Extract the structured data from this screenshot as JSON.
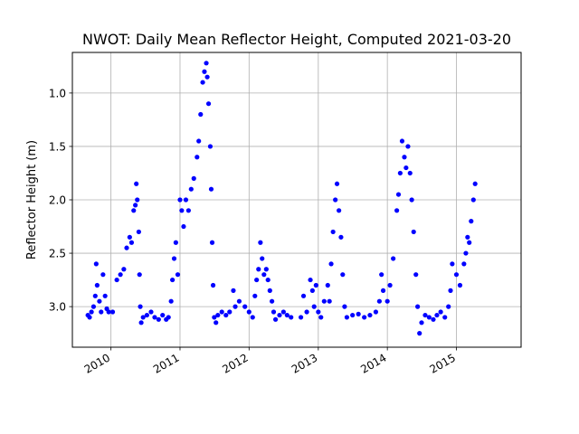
{
  "chart_data": {
    "type": "scatter",
    "title": "NWOT: Daily Mean Reflector Height, Computed 2021-03-20",
    "xlabel": "",
    "ylabel": "Reflector Height (m)",
    "x_axis_type": "date",
    "xlim": [
      "2009-06-11",
      "2015-12-09"
    ],
    "ylim": [
      3.38,
      0.62
    ],
    "y_inverted": true,
    "grid": true,
    "marker_color": "#0000ff",
    "xticks": [
      {
        "label": "2010",
        "date": "2010-01-01"
      },
      {
        "label": "2011",
        "date": "2011-01-01"
      },
      {
        "label": "2012",
        "date": "2012-01-01"
      },
      {
        "label": "2013",
        "date": "2013-01-01"
      },
      {
        "label": "2014",
        "date": "2014-01-01"
      },
      {
        "label": "2015",
        "date": "2015-01-01"
      }
    ],
    "yticks": [
      {
        "label": "1.0",
        "value": 1.0
      },
      {
        "label": "1.5",
        "value": 1.5
      },
      {
        "label": "2.0",
        "value": 2.0
      },
      {
        "label": "2.5",
        "value": 2.5
      },
      {
        "label": "3.0",
        "value": 3.0
      }
    ],
    "series": [
      {
        "points": [
          [
            "2009-09-01",
            3.08
          ],
          [
            "2009-09-10",
            3.1
          ],
          [
            "2009-09-20",
            3.05
          ],
          [
            "2009-10-01",
            3.0
          ],
          [
            "2009-10-10",
            2.9
          ],
          [
            "2009-10-15",
            2.6
          ],
          [
            "2009-10-20",
            2.8
          ],
          [
            "2009-11-01",
            2.95
          ],
          [
            "2009-11-10",
            3.05
          ],
          [
            "2009-11-20",
            2.7
          ],
          [
            "2009-12-01",
            2.9
          ],
          [
            "2009-12-10",
            3.02
          ],
          [
            "2009-12-20",
            3.05
          ],
          [
            "2010-01-10",
            3.05
          ],
          [
            "2010-02-01",
            2.75
          ],
          [
            "2010-02-20",
            2.7
          ],
          [
            "2010-03-10",
            2.65
          ],
          [
            "2010-03-25",
            2.45
          ],
          [
            "2010-04-10",
            2.35
          ],
          [
            "2010-04-20",
            2.4
          ],
          [
            "2010-05-01",
            2.1
          ],
          [
            "2010-05-10",
            2.05
          ],
          [
            "2010-05-15",
            1.85
          ],
          [
            "2010-05-20",
            2.0
          ],
          [
            "2010-05-28",
            2.3
          ],
          [
            "2010-06-01",
            2.7
          ],
          [
            "2010-06-05",
            3.0
          ],
          [
            "2010-06-10",
            3.15
          ],
          [
            "2010-06-20",
            3.1
          ],
          [
            "2010-07-10",
            3.08
          ],
          [
            "2010-08-01",
            3.05
          ],
          [
            "2010-08-20",
            3.1
          ],
          [
            "2010-09-10",
            3.12
          ],
          [
            "2010-10-01",
            3.08
          ],
          [
            "2010-10-20",
            3.12
          ],
          [
            "2010-11-01",
            3.1
          ],
          [
            "2010-11-15",
            2.95
          ],
          [
            "2010-11-22",
            2.75
          ],
          [
            "2010-12-01",
            2.55
          ],
          [
            "2010-12-10",
            2.4
          ],
          [
            "2010-12-20",
            2.7
          ],
          [
            "2011-01-01",
            2.0
          ],
          [
            "2011-01-10",
            2.1
          ],
          [
            "2011-01-20",
            2.25
          ],
          [
            "2011-02-01",
            2.0
          ],
          [
            "2011-02-15",
            2.1
          ],
          [
            "2011-03-01",
            1.9
          ],
          [
            "2011-03-15",
            1.8
          ],
          [
            "2011-04-01",
            1.6
          ],
          [
            "2011-04-10",
            1.45
          ],
          [
            "2011-04-20",
            1.2
          ],
          [
            "2011-05-01",
            0.9
          ],
          [
            "2011-05-10",
            0.8
          ],
          [
            "2011-05-20",
            0.72
          ],
          [
            "2011-05-25",
            0.85
          ],
          [
            "2011-06-01",
            1.1
          ],
          [
            "2011-06-10",
            1.5
          ],
          [
            "2011-06-15",
            1.9
          ],
          [
            "2011-06-20",
            2.4
          ],
          [
            "2011-06-25",
            2.8
          ],
          [
            "2011-07-01",
            3.1
          ],
          [
            "2011-07-10",
            3.15
          ],
          [
            "2011-07-20",
            3.08
          ],
          [
            "2011-08-10",
            3.05
          ],
          [
            "2011-09-01",
            3.08
          ],
          [
            "2011-09-20",
            3.05
          ],
          [
            "2011-10-10",
            2.85
          ],
          [
            "2011-10-20",
            3.0
          ],
          [
            "2011-11-10",
            2.95
          ],
          [
            "2011-12-10",
            3.0
          ],
          [
            "2012-01-01",
            3.05
          ],
          [
            "2012-01-20",
            3.1
          ],
          [
            "2012-02-01",
            2.9
          ],
          [
            "2012-02-10",
            2.75
          ],
          [
            "2012-02-20",
            2.65
          ],
          [
            "2012-03-01",
            2.4
          ],
          [
            "2012-03-10",
            2.55
          ],
          [
            "2012-03-20",
            2.7
          ],
          [
            "2012-04-01",
            2.65
          ],
          [
            "2012-04-10",
            2.75
          ],
          [
            "2012-04-20",
            2.85
          ],
          [
            "2012-05-01",
            2.95
          ],
          [
            "2012-05-10",
            3.05
          ],
          [
            "2012-05-20",
            3.12
          ],
          [
            "2012-06-10",
            3.08
          ],
          [
            "2012-07-01",
            3.05
          ],
          [
            "2012-07-20",
            3.08
          ],
          [
            "2012-08-10",
            3.1
          ],
          [
            "2012-10-01",
            3.1
          ],
          [
            "2012-10-15",
            2.9
          ],
          [
            "2012-11-01",
            3.05
          ],
          [
            "2012-11-20",
            2.75
          ],
          [
            "2012-12-01",
            2.85
          ],
          [
            "2012-12-10",
            3.0
          ],
          [
            "2012-12-20",
            2.8
          ],
          [
            "2013-01-01",
            3.05
          ],
          [
            "2013-01-15",
            3.1
          ],
          [
            "2013-02-01",
            2.95
          ],
          [
            "2013-02-20",
            2.8
          ],
          [
            "2013-03-01",
            2.95
          ],
          [
            "2013-03-10",
            2.6
          ],
          [
            "2013-03-20",
            2.3
          ],
          [
            "2013-04-01",
            2.0
          ],
          [
            "2013-04-10",
            1.85
          ],
          [
            "2013-04-20",
            2.1
          ],
          [
            "2013-05-01",
            2.35
          ],
          [
            "2013-05-10",
            2.7
          ],
          [
            "2013-05-20",
            3.0
          ],
          [
            "2013-06-01",
            3.1
          ],
          [
            "2013-07-01",
            3.08
          ],
          [
            "2013-08-01",
            3.07
          ],
          [
            "2013-09-01",
            3.1
          ],
          [
            "2013-10-01",
            3.08
          ],
          [
            "2013-11-01",
            3.05
          ],
          [
            "2013-11-20",
            2.95
          ],
          [
            "2013-12-01",
            2.7
          ],
          [
            "2013-12-10",
            2.85
          ],
          [
            "2014-01-01",
            2.95
          ],
          [
            "2014-01-15",
            2.8
          ],
          [
            "2014-02-01",
            2.55
          ],
          [
            "2014-02-20",
            2.1
          ],
          [
            "2014-03-01",
            1.95
          ],
          [
            "2014-03-10",
            1.75
          ],
          [
            "2014-03-20",
            1.45
          ],
          [
            "2014-04-01",
            1.6
          ],
          [
            "2014-04-10",
            1.7
          ],
          [
            "2014-04-20",
            1.5
          ],
          [
            "2014-05-01",
            1.75
          ],
          [
            "2014-05-10",
            2.0
          ],
          [
            "2014-05-20",
            2.3
          ],
          [
            "2014-06-01",
            2.7
          ],
          [
            "2014-06-10",
            3.0
          ],
          [
            "2014-06-20",
            3.25
          ],
          [
            "2014-07-01",
            3.15
          ],
          [
            "2014-07-20",
            3.08
          ],
          [
            "2014-08-10",
            3.1
          ],
          [
            "2014-09-01",
            3.12
          ],
          [
            "2014-09-20",
            3.08
          ],
          [
            "2014-10-10",
            3.05
          ],
          [
            "2014-11-01",
            3.1
          ],
          [
            "2014-11-20",
            3.0
          ],
          [
            "2014-12-01",
            2.85
          ],
          [
            "2014-12-10",
            2.6
          ],
          [
            "2015-01-01",
            2.7
          ],
          [
            "2015-01-20",
            2.8
          ],
          [
            "2015-02-10",
            2.6
          ],
          [
            "2015-02-20",
            2.5
          ],
          [
            "2015-03-01",
            2.35
          ],
          [
            "2015-03-10",
            2.4
          ],
          [
            "2015-03-20",
            2.2
          ],
          [
            "2015-04-01",
            2.0
          ],
          [
            "2015-04-10",
            1.85
          ]
        ]
      }
    ]
  }
}
